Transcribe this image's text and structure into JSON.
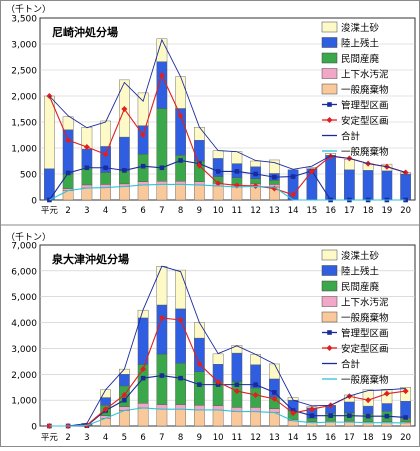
{
  "chart_data": [
    {
      "type": "bar",
      "title": "尼崎沖処分場",
      "ylabel": "（千トン）",
      "ylim": [
        0,
        3500
      ],
      "yticks": [
        "0",
        "500",
        "1,000",
        "1,500",
        "2,000",
        "2,500",
        "3,000",
        "3,500"
      ],
      "categories": [
        "平元",
        "2",
        "3",
        "4",
        "5",
        "6",
        "7",
        "8",
        "9",
        "10",
        "11",
        "12",
        "13",
        "14",
        "15",
        "16",
        "17",
        "18",
        "19",
        "20"
      ],
      "stack_series": [
        {
          "name": "一般廃棄物",
          "color": "#f9c89b",
          "values": [
            0,
            180,
            230,
            240,
            260,
            290,
            300,
            300,
            290,
            270,
            250,
            260,
            250,
            0,
            0,
            0,
            0,
            0,
            0,
            0
          ]
        },
        {
          "name": "上下水汚泥",
          "color": "#f2a6c8",
          "values": [
            0,
            40,
            60,
            60,
            50,
            60,
            60,
            60,
            60,
            50,
            50,
            50,
            50,
            0,
            0,
            0,
            0,
            0,
            0,
            0
          ]
        },
        {
          "name": "民間産廃",
          "color": "#3aa84a",
          "values": [
            0,
            280,
            340,
            230,
            250,
            530,
            1400,
            500,
            400,
            130,
            130,
            100,
            80,
            0,
            0,
            0,
            0,
            0,
            0,
            0
          ]
        },
        {
          "name": "陸上残土",
          "color": "#2f5fe0",
          "values": [
            600,
            850,
            350,
            500,
            650,
            550,
            900,
            900,
            400,
            350,
            270,
            230,
            130,
            580,
            600,
            860,
            580,
            570,
            560,
            500
          ]
        },
        {
          "name": "浚渫土砂",
          "color": "#fefac8",
          "values": [
            1400,
            250,
            420,
            490,
            1100,
            630,
            440,
            610,
            250,
            150,
            230,
            110,
            260,
            0,
            30,
            40,
            200,
            130,
            130,
            30
          ]
        }
      ],
      "line_series": [
        {
          "name": "管理型区画",
          "color": "#1b2b9b",
          "marker": "square",
          "values": [
            0,
            520,
            620,
            620,
            570,
            650,
            620,
            760,
            700,
            550,
            550,
            500,
            440,
            450,
            560,
            0,
            0,
            0,
            0,
            0
          ]
        },
        {
          "name": "安定型区画",
          "color": "#e02020",
          "marker": "diamond",
          "values": [
            2000,
            1150,
            1020,
            880,
            1750,
            1250,
            2400,
            1620,
            660,
            320,
            280,
            270,
            220,
            100,
            550,
            840,
            800,
            700,
            640,
            530
          ]
        },
        {
          "name": "合計",
          "color": "#1b2b9b",
          "marker": "none",
          "values": [
            2000,
            1620,
            1390,
            1500,
            2260,
            1900,
            3080,
            2370,
            1400,
            950,
            930,
            760,
            720,
            590,
            650,
            850,
            800,
            700,
            640,
            530
          ]
        },
        {
          "name": "一般廃棄物",
          "color": "#2cc4d8",
          "marker": "none",
          "values": [
            0,
            180,
            230,
            240,
            260,
            290,
            300,
            300,
            290,
            270,
            250,
            260,
            250,
            0,
            0,
            0,
            0,
            0,
            0,
            0
          ]
        }
      ]
    },
    {
      "type": "bar",
      "title": "泉大津沖処分場",
      "ylabel": "（千トン）",
      "ylim": [
        0,
        7000
      ],
      "yticks": [
        "0",
        "1,000",
        "2,000",
        "3,000",
        "4,000",
        "5,000",
        "6,000",
        "7,000"
      ],
      "categories": [
        "平元",
        "2",
        "3",
        "4",
        "5",
        "6",
        "7",
        "8",
        "9",
        "10",
        "11",
        "12",
        "13",
        "14",
        "15",
        "16",
        "17",
        "18",
        "19",
        "20"
      ],
      "stack_series": [
        {
          "name": "一般廃棄物",
          "color": "#f9c89b",
          "values": [
            0,
            0,
            20,
            300,
            600,
            700,
            650,
            650,
            620,
            620,
            560,
            560,
            520,
            200,
            130,
            150,
            150,
            130,
            130,
            120
          ]
        },
        {
          "name": "上下水汚泥",
          "color": "#f2a6c8",
          "values": [
            0,
            0,
            10,
            100,
            150,
            180,
            180,
            180,
            180,
            170,
            160,
            160,
            150,
            50,
            40,
            40,
            40,
            40,
            40,
            40
          ]
        },
        {
          "name": "民間産廃",
          "color": "#3aa84a",
          "values": [
            0,
            0,
            20,
            400,
            800,
            1500,
            1950,
            1600,
            1300,
            900,
            1000,
            750,
            450,
            350,
            130,
            300,
            320,
            300,
            400,
            150
          ]
        },
        {
          "name": "陸上残土",
          "color": "#2f5fe0",
          "values": [
            0,
            0,
            50,
            300,
            450,
            1800,
            1900,
            2100,
            1300,
            700,
            1100,
            900,
            700,
            400,
            400,
            300,
            420,
            300,
            300,
            650
          ]
        },
        {
          "name": "浚渫土砂",
          "color": "#fefac8",
          "values": [
            0,
            0,
            0,
            300,
            200,
            300,
            1500,
            1500,
            600,
            400,
            300,
            400,
            580,
            100,
            50,
            10,
            270,
            630,
            550,
            540
          ]
        }
      ],
      "line_series": [
        {
          "name": "管理型区画",
          "color": "#1b2b9b",
          "marker": "square",
          "values": [
            0,
            0,
            10,
            600,
            1000,
            1850,
            1950,
            1850,
            1600,
            1600,
            1600,
            1600,
            1300,
            600,
            400,
            400,
            400,
            380,
            380,
            330
          ]
        },
        {
          "name": "安定型区画",
          "color": "#e02020",
          "marker": "diamond",
          "values": [
            0,
            0,
            30,
            650,
            1200,
            2200,
            4180,
            4100,
            2400,
            1700,
            1350,
            1200,
            1050,
            500,
            650,
            800,
            1150,
            1000,
            1250,
            1350
          ]
        },
        {
          "name": "合計",
          "color": "#1b2b9b",
          "marker": "none",
          "values": [
            0,
            0,
            100,
            1400,
            2200,
            4500,
            6180,
            5970,
            4000,
            2800,
            3100,
            2770,
            2400,
            1000,
            780,
            800,
            1160,
            1370,
            1400,
            1450
          ]
        },
        {
          "name": "一般廃棄物",
          "color": "#2cc4d8",
          "marker": "none",
          "values": [
            0,
            0,
            20,
            300,
            600,
            700,
            650,
            650,
            620,
            620,
            560,
            560,
            520,
            200,
            130,
            150,
            150,
            130,
            130,
            120
          ]
        }
      ]
    }
  ]
}
